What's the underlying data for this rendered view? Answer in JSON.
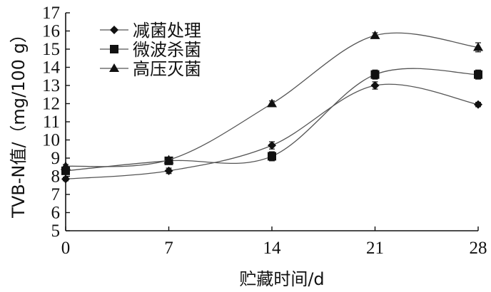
{
  "chart_data": {
    "type": "line",
    "xlabel": "贮藏时间/d",
    "ylabel": "TVB-N值/（mg/100 g）",
    "x": [
      0,
      7,
      14,
      21,
      28
    ],
    "xticks": [
      "0",
      "7",
      "14",
      "21",
      "28"
    ],
    "yticks": [
      "5",
      "6",
      "7",
      "8",
      "9",
      "10",
      "11",
      "12",
      "13",
      "14",
      "15",
      "16",
      "17"
    ],
    "xlim": [
      0,
      28
    ],
    "ylim": [
      5,
      17
    ],
    "grid": false,
    "legend_position": "top-left",
    "series": [
      {
        "name": "减菌处理",
        "marker": "diamond",
        "values": [
          7.85,
          8.3,
          9.7,
          13.0,
          11.95
        ],
        "errors": [
          0.1,
          0.15,
          0.2,
          0.2,
          0.12
        ]
      },
      {
        "name": "微波杀菌",
        "marker": "square",
        "values": [
          8.3,
          8.85,
          9.1,
          13.6,
          13.6
        ],
        "errors": [
          0.12,
          0.15,
          0.25,
          0.25,
          0.25
        ]
      },
      {
        "name": "高压灭菌",
        "marker": "triangle",
        "values": [
          8.55,
          8.9,
          12.0,
          15.75,
          15.1
        ],
        "errors": [
          0.1,
          0.12,
          0.15,
          0.15,
          0.25
        ]
      }
    ]
  }
}
